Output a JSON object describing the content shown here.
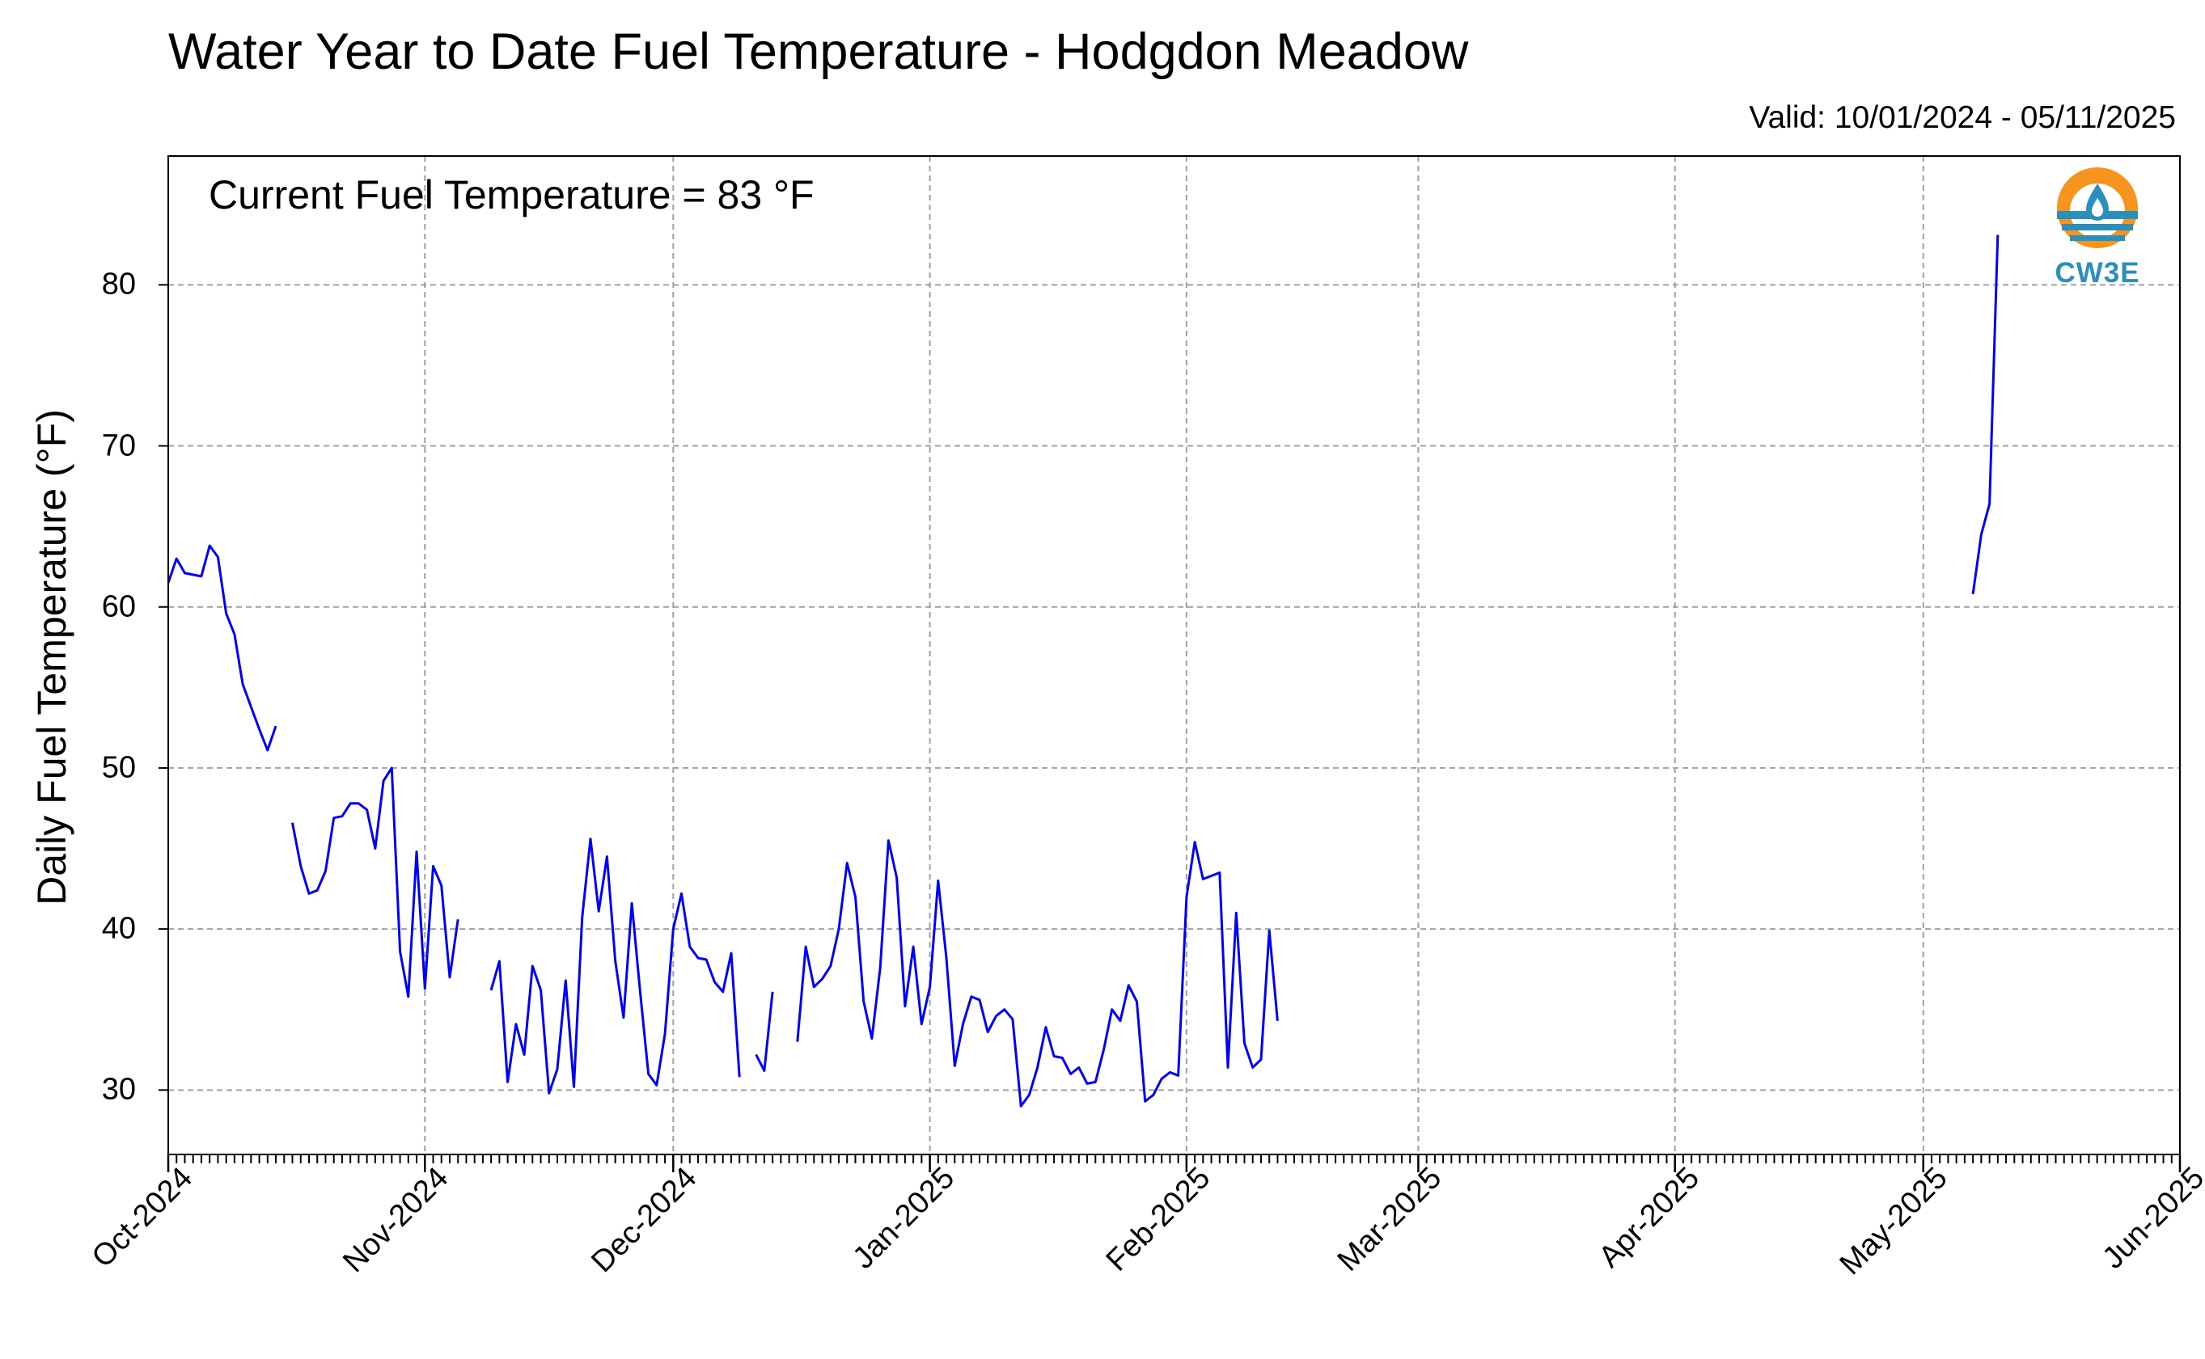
{
  "chart_data": {
    "type": "line",
    "title": "Water Year to Date Fuel Temperature - Hodgdon Meadow",
    "subtitle": "Valid: 10/01/2024 - 05/11/2025",
    "annotation": "Current Fuel Temperature = 83 °F",
    "ylabel": "Daily Fuel Temperature (°F)",
    "xlabel": "",
    "ylim": [
      26,
      88
    ],
    "xlim": [
      "2024-10-01",
      "2025-06-01"
    ],
    "yticks": [
      30,
      40,
      50,
      60,
      70,
      80
    ],
    "xticks": [
      {
        "date": "2024-10-01",
        "label": "Oct-2024"
      },
      {
        "date": "2024-11-01",
        "label": "Nov-2024"
      },
      {
        "date": "2024-12-01",
        "label": "Dec-2024"
      },
      {
        "date": "2025-01-01",
        "label": "Jan-2025"
      },
      {
        "date": "2025-02-01",
        "label": "Feb-2025"
      },
      {
        "date": "2025-03-01",
        "label": "Mar-2025"
      },
      {
        "date": "2025-04-01",
        "label": "Apr-2025"
      },
      {
        "date": "2025-05-01",
        "label": "May-2025"
      },
      {
        "date": "2025-06-01",
        "label": "Jun-2025"
      }
    ],
    "grid": true,
    "line_color": "#0000ff",
    "series": [
      {
        "x_start": "2024-10-01",
        "values": [
          61.5,
          63.0,
          62.1,
          62.0,
          61.9,
          63.8,
          63.1,
          59.6,
          58.3,
          55.2,
          53.8,
          52.4,
          51.1,
          52.6,
          null,
          46.6,
          43.9,
          42.2,
          42.4,
          43.6,
          46.9,
          47.0,
          47.8,
          47.8,
          47.4,
          45.0,
          49.2,
          50.0,
          38.6,
          35.8,
          44.8,
          36.3,
          43.9,
          42.7,
          37.0,
          40.6,
          null,
          null,
          null,
          36.2,
          38.0,
          30.5,
          34.1,
          32.2,
          37.7,
          36.2,
          29.8,
          31.3,
          36.8,
          30.2,
          40.7,
          45.6,
          41.1,
          44.5,
          38.0,
          34.5,
          41.6,
          36.1,
          31.0,
          30.3,
          33.5,
          40.0,
          42.2,
          38.9,
          38.2,
          38.1,
          36.7,
          36.1,
          38.5,
          30.8,
          null,
          32.2,
          31.2,
          36.1,
          null,
          null,
          33.0,
          38.9,
          36.4,
          36.9,
          37.7,
          40.0,
          44.1,
          42.0,
          35.5,
          33.2,
          37.6,
          45.5,
          43.2,
          35.2,
          38.9,
          34.1,
          36.4,
          43.0,
          38.2,
          31.5,
          34.1,
          35.8,
          35.6,
          33.6,
          34.6,
          35.0,
          34.4,
          29.0,
          29.7,
          31.4,
          33.9,
          32.1,
          32.0,
          31.0,
          31.4,
          30.4,
          30.5,
          32.5,
          35.0,
          34.3,
          36.5,
          35.5,
          29.3,
          29.7,
          30.7,
          31.1,
          30.9,
          42.0,
          45.4,
          43.1,
          43.3,
          43.5,
          31.4,
          41.0,
          32.9,
          31.4,
          31.9,
          39.9,
          34.3
        ]
      },
      {
        "x_start": "2025-05-07",
        "values": [
          60.8,
          64.5,
          66.4,
          83.1
        ]
      }
    ]
  },
  "logo": {
    "text": "CW3E",
    "colors": {
      "sun": "#f7941d",
      "water": "#2a8fbd"
    }
  }
}
